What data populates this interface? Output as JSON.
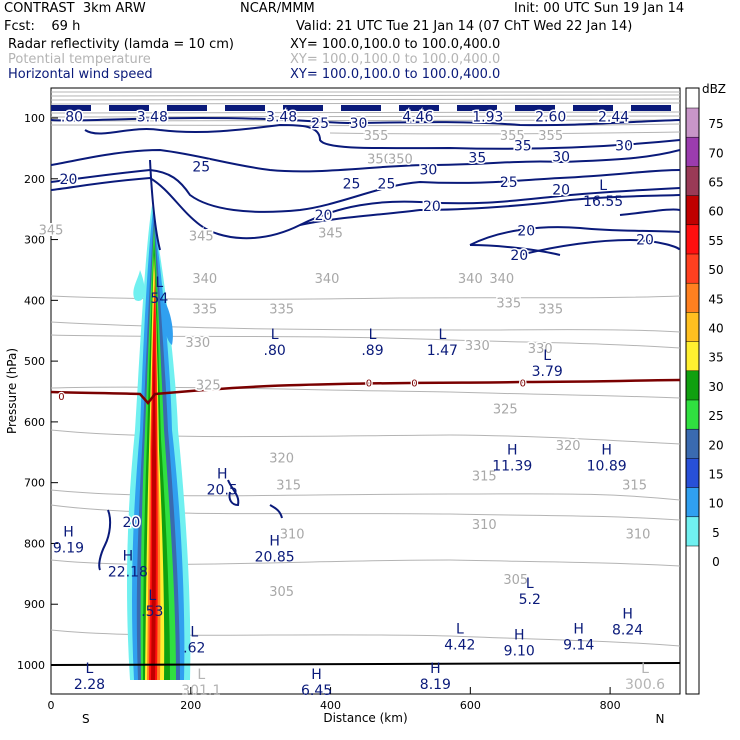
{
  "header": {
    "project": "CONTRAST  3km ARW",
    "org": "NCAR/MMM",
    "init": "Init: 00 UTC Sun 19 Jan 14",
    "fcst": "Fcst:    69 h",
    "valid": "Valid: 21 UTC Tue 21 Jan 14 (07 ChT Wed 22 Jan 14)",
    "fields": [
      {
        "name": "Radar reflectivity (lamda = 10 cm)",
        "xy": "XY= 100.0,100.0 to 100.0,400.0",
        "color": "#000000"
      },
      {
        "name": "Potential temperature",
        "xy": "XY= 100.0,100.0 to 100.0,400.0",
        "color": "#b4b4b4"
      },
      {
        "name": "Horizontal wind speed",
        "xy": "XY= 100.0,100.0 to 100.0,400.0",
        "color": "#0a1a7a"
      }
    ]
  },
  "chart_data": {
    "type": "cross-section",
    "xlabel": "Distance (km)",
    "ylabel": "Pressure (hPa)",
    "xlim": [
      0,
      900
    ],
    "ylim": [
      1050,
      70
    ],
    "xticks": [
      "0",
      "200",
      "400",
      "600",
      "800"
    ],
    "xtick_values": [
      0,
      200,
      400,
      600,
      800
    ],
    "yticks": [
      "100",
      "200",
      "300",
      "400",
      "500",
      "600",
      "700",
      "800",
      "900",
      "1000"
    ],
    "ytick_values": [
      100,
      200,
      300,
      400,
      500,
      600,
      700,
      800,
      900,
      1000
    ],
    "direction_labels": {
      "left": "S",
      "right": "N"
    },
    "colorbar": {
      "title": "dBZ",
      "labels": [
        "75",
        "70",
        "65",
        "60",
        "55",
        "50",
        "45",
        "40",
        "35",
        "30",
        "25",
        "20",
        "15",
        "10",
        "5",
        "0"
      ],
      "colors": [
        "#c896c8",
        "#9b3cae",
        "#9a3a56",
        "#c00000",
        "#ff1010",
        "#ff4020",
        "#ff8020",
        "#ffc020",
        "#fff030",
        "#10a010",
        "#30e040",
        "#3a6ab0",
        "#2850d8",
        "#30a0f0",
        "#70f0f0",
        "#ffffff"
      ]
    },
    "theta_labels": [
      {
        "text": "345",
        "x": 0,
        "p": 285
      },
      {
        "text": "345",
        "x": 215,
        "p": 295
      },
      {
        "text": "345",
        "x": 400,
        "p": 290
      },
      {
        "text": "340",
        "x": 220,
        "p": 365
      },
      {
        "text": "340",
        "x": 395,
        "p": 365
      },
      {
        "text": "340",
        "x": 600,
        "p": 365
      },
      {
        "text": "340",
        "x": 645,
        "p": 365
      },
      {
        "text": "335",
        "x": 220,
        "p": 415
      },
      {
        "text": "335",
        "x": 330,
        "p": 415
      },
      {
        "text": "335",
        "x": 655,
        "p": 405
      },
      {
        "text": "335",
        "x": 715,
        "p": 415
      },
      {
        "text": "330",
        "x": 210,
        "p": 470
      },
      {
        "text": "330",
        "x": 610,
        "p": 475
      },
      {
        "text": "330",
        "x": 700,
        "p": 480
      },
      {
        "text": "325",
        "x": 225,
        "p": 540
      },
      {
        "text": "325",
        "x": 650,
        "p": 580
      },
      {
        "text": "320",
        "x": 330,
        "p": 660
      },
      {
        "text": "320",
        "x": 740,
        "p": 640
      },
      {
        "text": "315",
        "x": 340,
        "p": 705
      },
      {
        "text": "315",
        "x": 620,
        "p": 690
      },
      {
        "text": "315",
        "x": 835,
        "p": 705
      },
      {
        "text": "310",
        "x": 345,
        "p": 785
      },
      {
        "text": "310",
        "x": 620,
        "p": 770
      },
      {
        "text": "310",
        "x": 840,
        "p": 785
      },
      {
        "text": "305",
        "x": 330,
        "p": 880
      },
      {
        "text": "305",
        "x": 665,
        "p": 860
      },
      {
        "text": "355",
        "x": 465,
        "p": 130
      },
      {
        "text": "355",
        "x": 660,
        "p": 130
      },
      {
        "text": "355",
        "x": 715,
        "p": 130
      },
      {
        "text": "350",
        "x": 470,
        "p": 168
      },
      {
        "text": "350",
        "x": 500,
        "p": 168
      }
    ],
    "wind_labels": [
      {
        "text": "20",
        "x": 25,
        "p": 200
      },
      {
        "text": "25",
        "x": 215,
        "p": 180
      },
      {
        "text": "25",
        "x": 430,
        "p": 208
      },
      {
        "text": "25",
        "x": 480,
        "p": 208
      },
      {
        "text": "25",
        "x": 655,
        "p": 205
      },
      {
        "text": "35",
        "x": 610,
        "p": 165
      },
      {
        "text": "30",
        "x": 540,
        "p": 185
      },
      {
        "text": "30",
        "x": 730,
        "p": 163
      },
      {
        "text": "30",
        "x": 820,
        "p": 145
      },
      {
        "text": "35",
        "x": 675,
        "p": 145
      },
      {
        "text": "20",
        "x": 390,
        "p": 260
      },
      {
        "text": "20",
        "x": 545,
        "p": 245
      },
      {
        "text": "20",
        "x": 730,
        "p": 218
      },
      {
        "text": "20",
        "x": 680,
        "p": 285
      },
      {
        "text": "20",
        "x": 670,
        "p": 325
      },
      {
        "text": "20",
        "x": 850,
        "p": 300
      },
      {
        "text": "20",
        "x": 115,
        "p": 765
      },
      {
        "text": "25",
        "x": 385,
        "p": 108
      },
      {
        "text": "30",
        "x": 440,
        "p": 108
      }
    ],
    "top_labels": [
      {
        "text": ".80",
        "x": 30,
        "p": 104
      },
      {
        "text": "3.48",
        "x": 145,
        "p": 104
      },
      {
        "text": "3.48",
        "x": 330,
        "p": 104
      },
      {
        "text": "4.46",
        "x": 525,
        "p": 104
      },
      {
        "text": "1.93",
        "x": 625,
        "p": 104
      },
      {
        "text": "2.60",
        "x": 715,
        "p": 104
      },
      {
        "text": "2.44",
        "x": 805,
        "p": 104
      }
    ],
    "freezing_labels": [
      {
        "text": "0",
        "x": 15,
        "p": 557
      },
      {
        "text": "0",
        "x": 455,
        "p": 535
      },
      {
        "text": "0",
        "x": 520,
        "p": 535
      },
      {
        "text": "0",
        "x": 675,
        "p": 535
      }
    ],
    "markers": [
      {
        "kind": "L",
        "value": "54",
        "x": 155,
        "p": 385
      },
      {
        "kind": "L",
        "value": ".80",
        "x": 320,
        "p": 470
      },
      {
        "kind": "L",
        "value": ".89",
        "x": 460,
        "p": 470
      },
      {
        "kind": "L",
        "value": "1.47",
        "x": 560,
        "p": 470
      },
      {
        "kind": "L",
        "value": "3.79",
        "x": 710,
        "p": 505
      },
      {
        "kind": "L",
        "value": "16.55",
        "x": 790,
        "p": 225
      },
      {
        "kind": "H",
        "value": "20.5",
        "x": 245,
        "p": 700
      },
      {
        "kind": "H",
        "value": "20.85",
        "x": 320,
        "p": 810
      },
      {
        "kind": "H",
        "value": "11.39",
        "x": 660,
        "p": 660
      },
      {
        "kind": "H",
        "value": "10.89",
        "x": 795,
        "p": 660
      },
      {
        "kind": "H",
        "value": "9.19",
        "x": 25,
        "p": 795
      },
      {
        "kind": "H",
        "value": "22.18",
        "x": 110,
        "p": 835
      },
      {
        "kind": "L",
        "value": ".53",
        "x": 145,
        "p": 900
      },
      {
        "kind": "L",
        "value": ".62",
        "x": 205,
        "p": 960
      },
      {
        "kind": "L",
        "value": "5.2",
        "x": 685,
        "p": 880
      },
      {
        "kind": "L",
        "value": "4.42",
        "x": 585,
        "p": 955
      },
      {
        "kind": "H",
        "value": "9.10",
        "x": 670,
        "p": 965
      },
      {
        "kind": "H",
        "value": "9.14",
        "x": 755,
        "p": 955
      },
      {
        "kind": "H",
        "value": "8.24",
        "x": 825,
        "p": 930
      },
      {
        "kind": "L",
        "value": "2.28",
        "x": 55,
        "p": 1020
      },
      {
        "kind": "L",
        "value": "301.1",
        "x": 215,
        "p": 1030
      },
      {
        "kind": "H",
        "value": "6.45",
        "x": 380,
        "p": 1030
      },
      {
        "kind": "H",
        "value": "8.19",
        "x": 550,
        "p": 1020
      },
      {
        "kind": "L",
        "value": "300.6",
        "x": 850,
        "p": 1020
      }
    ]
  }
}
